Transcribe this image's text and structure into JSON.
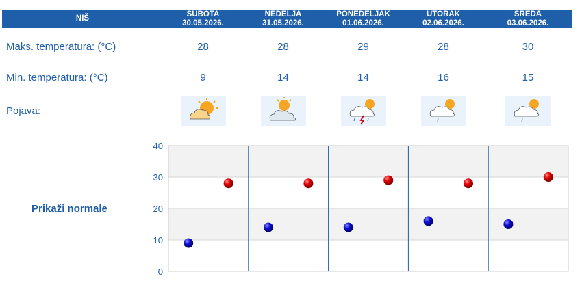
{
  "header": {
    "city": "NIŠ",
    "days": [
      {
        "name": "SUBOTA",
        "date": "30.05.2026."
      },
      {
        "name": "NEDELJA",
        "date": "31.05.2026."
      },
      {
        "name": "PONEDELJAK",
        "date": "01.06.2026."
      },
      {
        "name": "UTORAK",
        "date": "02.06.2026."
      },
      {
        "name": "SREDA",
        "date": "03.06.2026."
      }
    ]
  },
  "rows": {
    "max_label": "Maks. temperatura: (°C)",
    "min_label": "Min. temperatura: (°C)",
    "symbol_label": "Pojava:"
  },
  "max_temps": [
    "28",
    "28",
    "29",
    "28",
    "30"
  ],
  "min_temps": [
    "9",
    "14",
    "14",
    "16",
    "15"
  ],
  "symbols": [
    "partly-cloudy-sunny-icon",
    "partly-cloudy-icon",
    "thunderstorm-sun-icon",
    "cloud-sun-light-rain-icon",
    "cloud-sun-light-rain-icon"
  ],
  "normals_link": "Prikaži normale",
  "colors": {
    "header_bg": "#1f5ea8",
    "text": "#1f5ea8",
    "max_marker": "#cc0000",
    "min_marker": "#0000aa",
    "band": "#f2f2f2",
    "separator": "#1f5ea8"
  },
  "chart_data": {
    "type": "scatter",
    "categories": [
      "SUBOTA",
      "NEDELJA",
      "PONEDELJAK",
      "UTORAK",
      "SREDA"
    ],
    "series": [
      {
        "values": [
          28,
          28,
          29,
          28,
          30
        ],
        "color": "#cc0000"
      },
      {
        "values": [
          9,
          14,
          14,
          16,
          15
        ],
        "color": "#0000aa"
      }
    ],
    "yticks": [
      "0",
      "10",
      "20",
      "30",
      "40"
    ],
    "ylim": [
      0,
      40
    ],
    "grid": true
  }
}
